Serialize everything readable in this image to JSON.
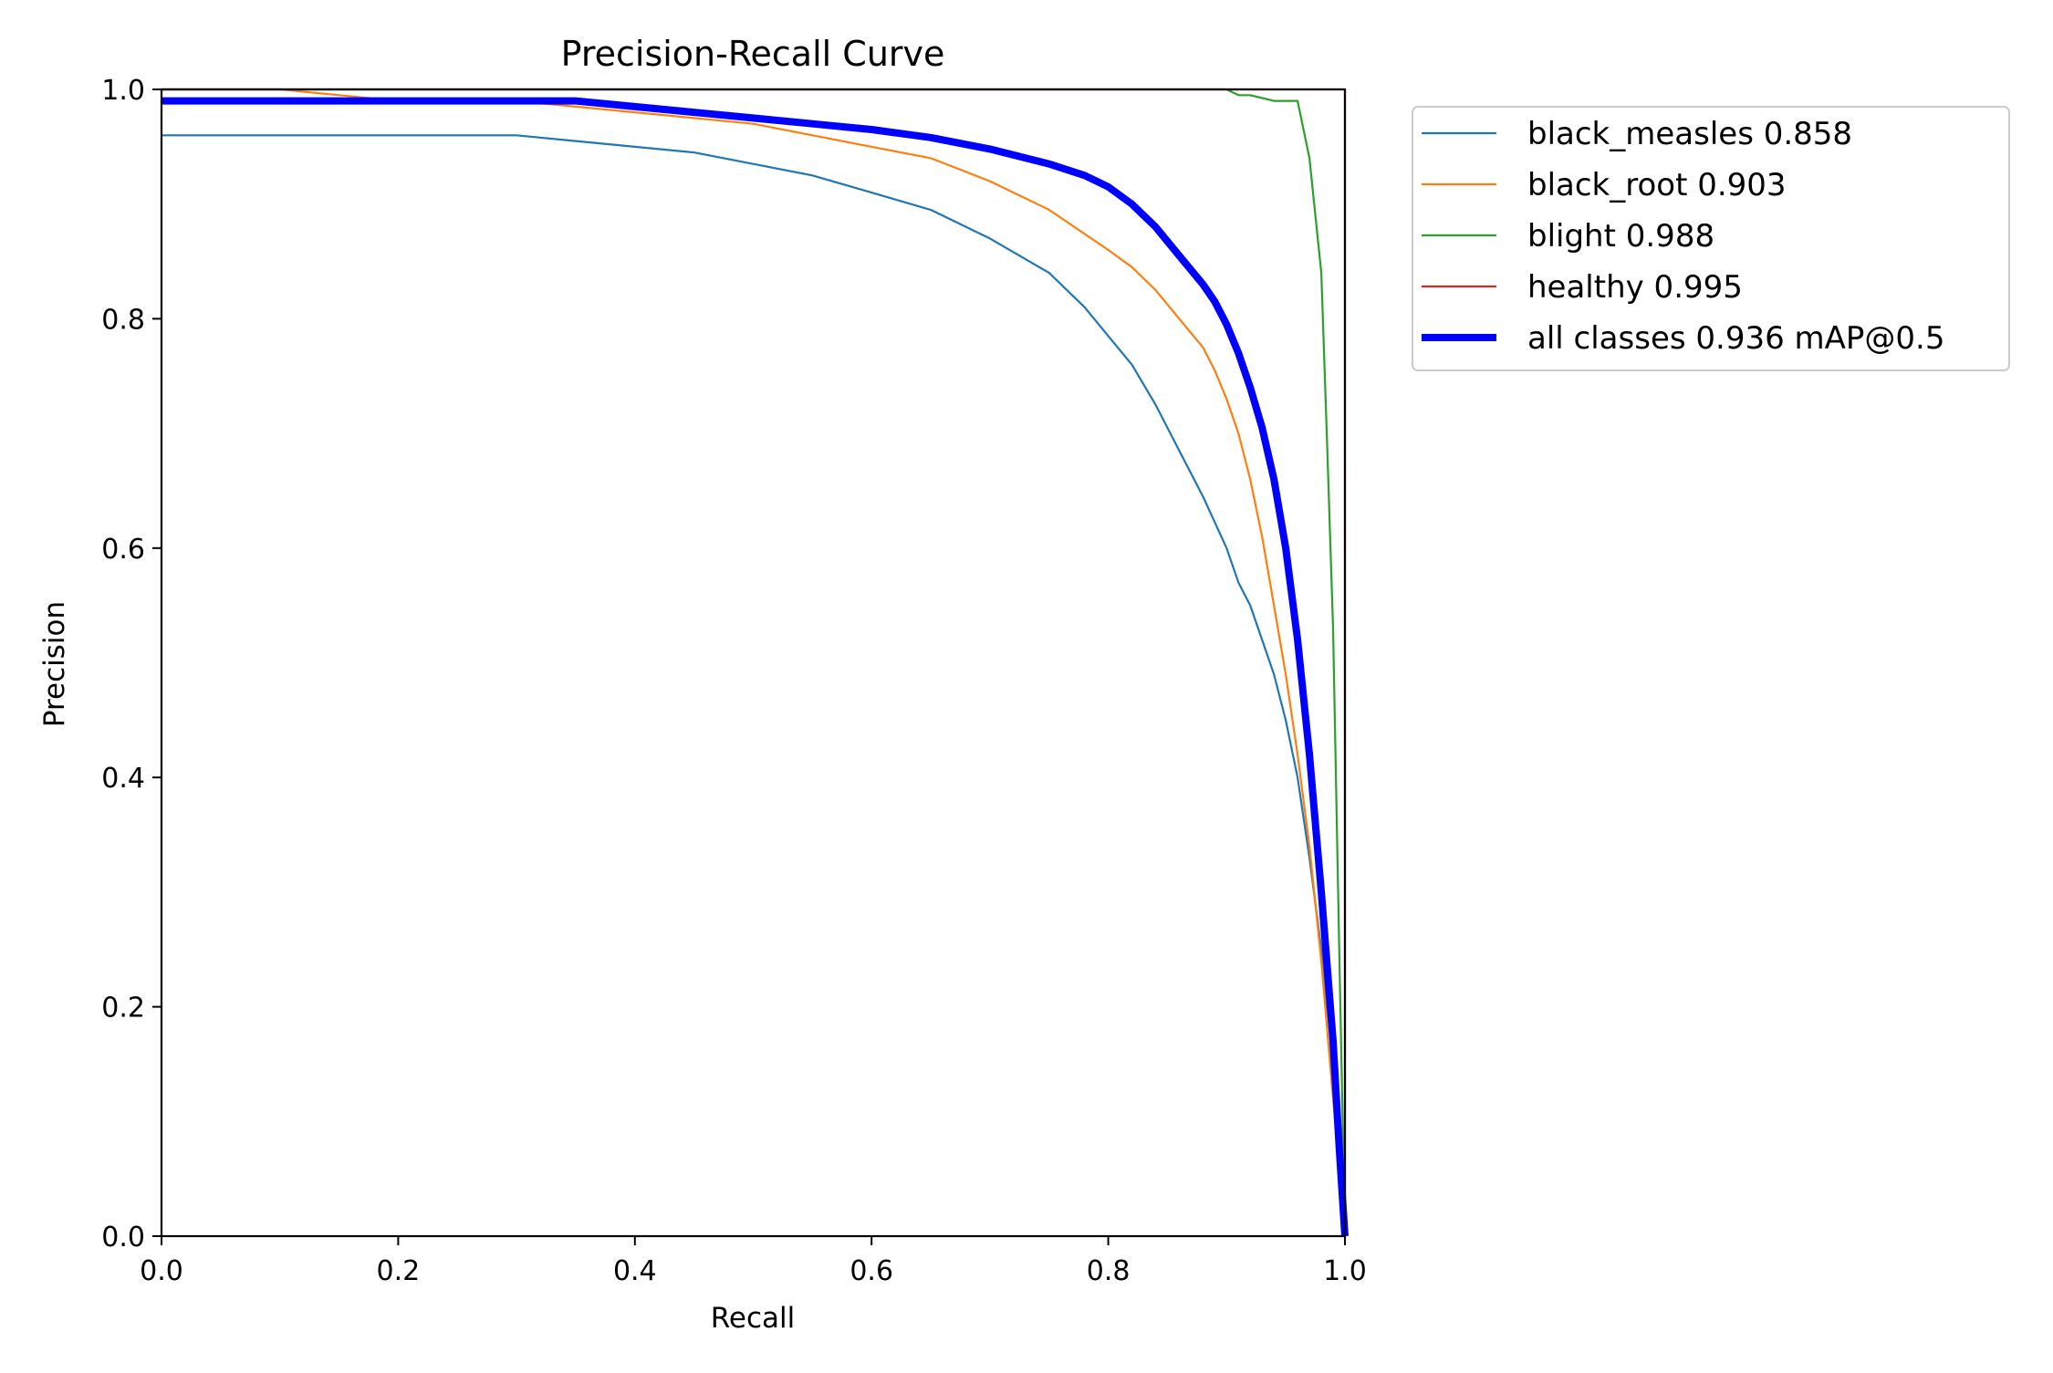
{
  "chart_data": {
    "type": "line",
    "title": "Precision-Recall Curve",
    "xlabel": "Recall",
    "ylabel": "Precision",
    "xlim": [
      0,
      1
    ],
    "ylim": [
      0,
      1
    ],
    "xticks": [
      0.0,
      0.2,
      0.4,
      0.6,
      0.8,
      1.0
    ],
    "yticks": [
      0.0,
      0.2,
      0.4,
      0.6,
      0.8,
      1.0
    ],
    "xtick_labels": [
      "0.0",
      "0.2",
      "0.4",
      "0.6",
      "0.8",
      "1.0"
    ],
    "ytick_labels": [
      "0.0",
      "0.2",
      "0.4",
      "0.6",
      "0.8",
      "1.0"
    ],
    "grid": false,
    "legend_position": "outside-top-right",
    "series": [
      {
        "name": "black_measles 0.858",
        "color": "#1f77b4",
        "x": [
          0.0,
          0.3,
          0.35,
          0.4,
          0.45,
          0.5,
          0.55,
          0.6,
          0.65,
          0.7,
          0.75,
          0.78,
          0.8,
          0.82,
          0.84,
          0.86,
          0.88,
          0.9,
          0.91,
          0.92,
          0.93,
          0.94,
          0.95,
          0.96,
          0.97,
          0.98,
          0.99,
          1.0
        ],
        "y": [
          0.96,
          0.96,
          0.955,
          0.95,
          0.945,
          0.935,
          0.925,
          0.91,
          0.895,
          0.87,
          0.84,
          0.81,
          0.785,
          0.76,
          0.725,
          0.685,
          0.645,
          0.6,
          0.57,
          0.55,
          0.52,
          0.49,
          0.45,
          0.4,
          0.33,
          0.25,
          0.15,
          0.0
        ]
      },
      {
        "name": "black_root 0.903",
        "color": "#ff7f0e",
        "x": [
          0.0,
          0.1,
          0.2,
          0.3,
          0.4,
          0.45,
          0.5,
          0.55,
          0.6,
          0.65,
          0.7,
          0.75,
          0.8,
          0.82,
          0.84,
          0.86,
          0.88,
          0.89,
          0.9,
          0.91,
          0.92,
          0.93,
          0.94,
          0.95,
          0.96,
          0.97,
          0.98,
          0.99,
          1.0
        ],
        "y": [
          1.0,
          1.0,
          0.99,
          0.99,
          0.98,
          0.975,
          0.97,
          0.96,
          0.95,
          0.94,
          0.92,
          0.895,
          0.86,
          0.845,
          0.825,
          0.8,
          0.775,
          0.755,
          0.73,
          0.7,
          0.66,
          0.61,
          0.55,
          0.49,
          0.42,
          0.34,
          0.24,
          0.12,
          0.0
        ]
      },
      {
        "name": "blight 0.988",
        "color": "#2ca02c",
        "x": [
          0.0,
          0.9,
          0.91,
          0.92,
          0.94,
          0.96,
          0.97,
          0.975,
          0.98,
          0.985,
          0.99,
          0.995,
          1.0
        ],
        "y": [
          1.0,
          1.0,
          0.995,
          0.995,
          0.99,
          0.99,
          0.94,
          0.89,
          0.84,
          0.69,
          0.53,
          0.26,
          0.0
        ]
      },
      {
        "name": "healthy 0.995",
        "color": "#d62728",
        "x": [
          0.0,
          1.0,
          1.0
        ],
        "y": [
          1.0,
          1.0,
          0.0
        ]
      },
      {
        "name": "all classes 0.936 mAP@0.5",
        "color": "#0000ff",
        "x": [
          0.0,
          0.1,
          0.2,
          0.3,
          0.35,
          0.4,
          0.45,
          0.5,
          0.55,
          0.6,
          0.65,
          0.7,
          0.75,
          0.78,
          0.8,
          0.82,
          0.84,
          0.86,
          0.88,
          0.89,
          0.9,
          0.91,
          0.92,
          0.93,
          0.94,
          0.95,
          0.96,
          0.97,
          0.98,
          0.99,
          0.995,
          1.0
        ],
        "y": [
          0.99,
          0.99,
          0.99,
          0.99,
          0.99,
          0.985,
          0.98,
          0.975,
          0.97,
          0.965,
          0.958,
          0.948,
          0.935,
          0.925,
          0.915,
          0.9,
          0.88,
          0.855,
          0.83,
          0.815,
          0.795,
          0.77,
          0.74,
          0.705,
          0.66,
          0.6,
          0.52,
          0.42,
          0.3,
          0.17,
          0.08,
          0.0
        ]
      }
    ]
  }
}
